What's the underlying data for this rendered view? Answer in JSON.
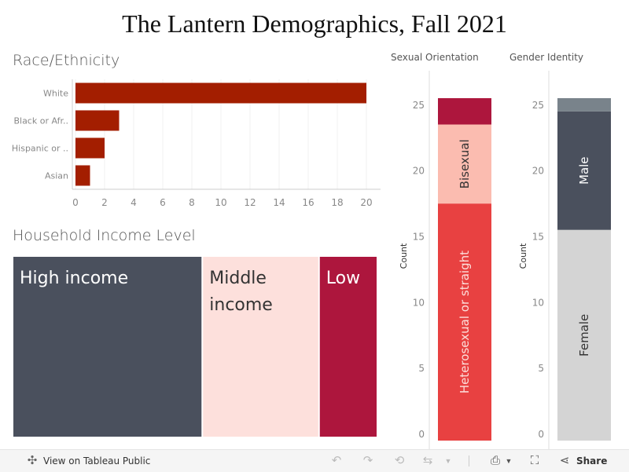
{
  "title": "The Lantern Demographics, Fall 2021",
  "colors": {
    "race_bar": "#a31e00",
    "high_income": "#4a505d",
    "middle_income": "#fde0dc",
    "low_income": "#ad163d",
    "other_orientation": "#ad163d",
    "bisexual": "#fbbcb0",
    "heterosexual": "#e84141",
    "gender_top": "#79838b",
    "male": "#4a505d",
    "female": "#d4d4d4"
  },
  "chart_data": [
    {
      "type": "bar",
      "orientation": "horizontal",
      "title": "Race/Ethnicity",
      "categories": [
        "White",
        "Black or Afr..",
        "Hispanic or ..",
        "Asian"
      ],
      "values": [
        20,
        3,
        2,
        1
      ],
      "xlim": [
        0,
        20.8
      ],
      "xticks": [
        "0",
        "2",
        "4",
        "6",
        "8",
        "10",
        "12",
        "14",
        "16",
        "18",
        "20"
      ]
    },
    {
      "type": "treemap",
      "title": "Household Income Level",
      "categories": [
        "High income",
        "Middle income",
        "Low"
      ],
      "values": [
        13,
        8,
        4
      ]
    },
    {
      "type": "bar",
      "stacked": true,
      "title": "Sexual Orientation",
      "ylabel": "Count",
      "ylim": [
        0,
        26.5
      ],
      "yticks": [
        "0",
        "5",
        "10",
        "15",
        "20",
        "25"
      ],
      "segments": [
        {
          "label": "Heterosexual or straight",
          "value": 18
        },
        {
          "label": "Bisexual",
          "value": 6
        },
        {
          "label": "",
          "value": 2
        }
      ]
    },
    {
      "type": "bar",
      "stacked": true,
      "title": "Gender Identity",
      "ylabel": "Count",
      "ylim": [
        0,
        26.5
      ],
      "yticks": [
        "0",
        "5",
        "10",
        "15",
        "20",
        "25"
      ],
      "segments": [
        {
          "label": "Female",
          "value": 16
        },
        {
          "label": "Male",
          "value": 9
        },
        {
          "label": "",
          "value": 1
        }
      ]
    }
  ],
  "toolbar": {
    "view_label": "View on Tableau Public",
    "share_label": "Share"
  }
}
